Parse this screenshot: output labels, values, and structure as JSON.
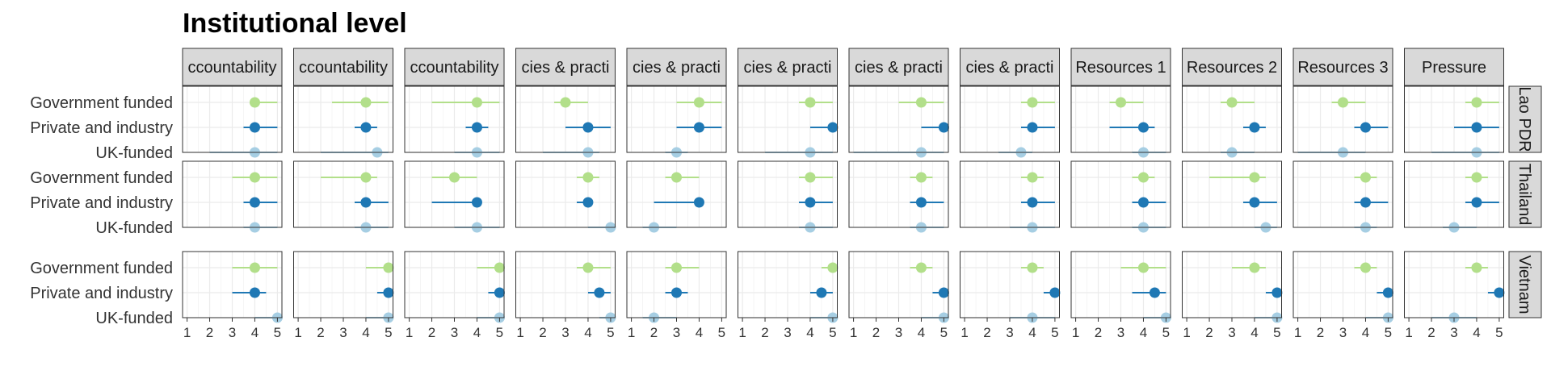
{
  "chart_data": {
    "type": "scatter",
    "title": "Institutional level",
    "facet_columns": [
      "ccountability",
      "ccountability",
      "ccountability",
      "cies & practi",
      "cies & practi",
      "cies & practi",
      "cies & practi",
      "cies & practi",
      "Resources 1",
      "Resources 2",
      "Resources 3",
      "Pressure"
    ],
    "facet_rows": [
      "Lao PDR",
      "Thailand",
      "Vietnam"
    ],
    "categories": [
      "Government funded",
      "Private and industry",
      "UK-funded"
    ],
    "x_ticks": [
      "1",
      "2",
      "3",
      "4",
      "5"
    ],
    "xlim": [
      0.8,
      5.2
    ],
    "grid": true,
    "colors": {
      "Government funded": "#b2df8a",
      "Private and industry": "#1f78b4",
      "UK-funded": "#a6cee3",
      "strip_fill": "#d9d9d9",
      "grid": "#ebebeb"
    },
    "series": [
      {
        "name": "Government funded",
        "values": [
          [
            [
              4,
              4,
              5
            ],
            [
              4,
              3,
              5
            ],
            [
              4,
              3,
              5
            ]
          ],
          [
            [
              4,
              2.5,
              5
            ],
            [
              4,
              2,
              4.5
            ],
            [
              5,
              4,
              5
            ]
          ],
          [
            [
              4,
              2,
              5
            ],
            [
              3,
              2,
              4
            ],
            [
              5,
              4,
              5
            ]
          ],
          [
            [
              3,
              2.5,
              4
            ],
            [
              4,
              3.5,
              4.5
            ],
            [
              4,
              3.5,
              5
            ]
          ],
          [
            [
              4,
              3,
              5
            ],
            [
              3,
              2.5,
              4
            ],
            [
              3,
              2.5,
              4
            ]
          ],
          [
            [
              4,
              3.5,
              5
            ],
            [
              4,
              3.5,
              5
            ],
            [
              5,
              4.5,
              5
            ]
          ],
          [
            [
              4,
              3,
              5
            ],
            [
              4,
              3.5,
              4.5
            ],
            [
              4,
              3.5,
              4.5
            ]
          ],
          [
            [
              4,
              3.5,
              5
            ],
            [
              4,
              3.5,
              4.5
            ],
            [
              4,
              3.5,
              4.5
            ]
          ],
          [
            [
              3,
              2.5,
              4
            ],
            [
              4,
              3.5,
              4.5
            ],
            [
              4,
              3,
              5
            ]
          ],
          [
            [
              3,
              2.5,
              4
            ],
            [
              4,
              2,
              4.5
            ],
            [
              4,
              3,
              4.5
            ]
          ],
          [
            [
              3,
              2.5,
              4
            ],
            [
              4,
              3.5,
              4.5
            ],
            [
              4,
              3.5,
              4.5
            ]
          ],
          [
            [
              4,
              3.5,
              5
            ],
            [
              4,
              3.5,
              4.5
            ],
            [
              4,
              3.5,
              4.5
            ]
          ]
        ]
      },
      {
        "name": "Private and industry",
        "values": [
          [
            [
              4,
              3.5,
              5
            ],
            [
              4,
              3.5,
              5
            ],
            [
              4,
              3,
              4.5
            ]
          ],
          [
            [
              4,
              3.5,
              4.5
            ],
            [
              4,
              3.5,
              5
            ],
            [
              5,
              4.5,
              5
            ]
          ],
          [
            [
              4,
              3.5,
              4.5
            ],
            [
              4,
              2,
              4
            ],
            [
              5,
              4.5,
              5
            ]
          ],
          [
            [
              4,
              3,
              5
            ],
            [
              4,
              3.5,
              4
            ],
            [
              4.5,
              4,
              5
            ]
          ],
          [
            [
              4,
              3,
              5
            ],
            [
              4,
              2,
              4
            ],
            [
              3,
              2.5,
              3.5
            ]
          ],
          [
            [
              5,
              4,
              5
            ],
            [
              4,
              3.5,
              5
            ],
            [
              4.5,
              4,
              5
            ]
          ],
          [
            [
              5,
              4,
              5
            ],
            [
              4,
              3.5,
              5
            ],
            [
              5,
              4.5,
              5
            ]
          ],
          [
            [
              4,
              3.5,
              5
            ],
            [
              4,
              3.5,
              5
            ],
            [
              5,
              4.5,
              5
            ]
          ],
          [
            [
              4,
              2.5,
              4.5
            ],
            [
              4,
              3.5,
              5
            ],
            [
              4.5,
              3.5,
              5
            ]
          ],
          [
            [
              4,
              3.5,
              4.5
            ],
            [
              4,
              3.5,
              5
            ],
            [
              5,
              4.5,
              5
            ]
          ],
          [
            [
              4,
              3.5,
              5
            ],
            [
              4,
              3.5,
              5
            ],
            [
              5,
              4.5,
              5
            ]
          ],
          [
            [
              4,
              3,
              5
            ],
            [
              4,
              3.5,
              5
            ],
            [
              5,
              4.5,
              5
            ]
          ]
        ]
      },
      {
        "name": "UK-funded",
        "values": [
          [
            [
              4,
              2,
              5
            ],
            [
              4,
              3.5,
              5
            ],
            [
              5,
              4,
              5
            ]
          ],
          [
            [
              4.5,
              2,
              5
            ],
            [
              4,
              3.5,
              5
            ],
            [
              5,
              4,
              5
            ]
          ],
          [
            [
              4,
              3,
              5
            ],
            [
              4,
              3,
              5
            ],
            [
              5,
              4,
              5
            ]
          ],
          [
            [
              4,
              2,
              4.5
            ],
            [
              5,
              4,
              5
            ],
            [
              5,
              4.5,
              5
            ]
          ],
          [
            [
              3,
              2.5,
              3.5
            ],
            [
              2,
              1.5,
              3
            ],
            [
              2,
              1.5,
              3
            ]
          ],
          [
            [
              4,
              2,
              5
            ],
            [
              4,
              3.5,
              5
            ],
            [
              5,
              4,
              5
            ]
          ],
          [
            [
              4,
              1,
              5
            ],
            [
              4,
              3.5,
              5
            ],
            [
              5,
              4,
              5
            ]
          ],
          [
            [
              3.5,
              2.5,
              4
            ],
            [
              4,
              3,
              5
            ],
            [
              4,
              3,
              5
            ]
          ],
          [
            [
              4,
              3.5,
              5
            ],
            [
              4,
              3.5,
              5
            ],
            [
              5,
              4,
              5
            ]
          ],
          [
            [
              3,
              2.5,
              4
            ],
            [
              4.5,
              4,
              5
            ],
            [
              5,
              4,
              5
            ]
          ],
          [
            [
              3,
              1,
              4
            ],
            [
              4,
              3.5,
              4.5
            ],
            [
              5,
              4,
              5
            ]
          ],
          [
            [
              4,
              2,
              5
            ],
            [
              3,
              2.5,
              4
            ],
            [
              3,
              2,
              4
            ]
          ]
        ]
      }
    ]
  }
}
